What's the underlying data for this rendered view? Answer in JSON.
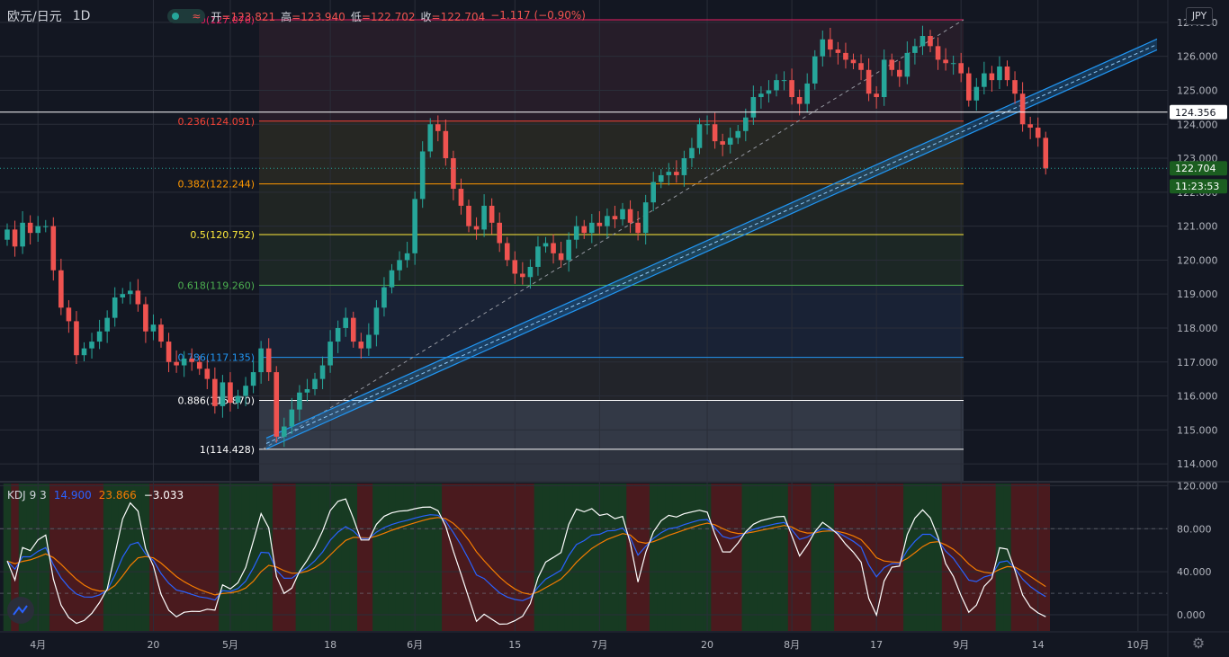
{
  "header": {
    "symbol": "欧元/日元",
    "timeframe": "1D",
    "open_label": "开",
    "open": "=123.821",
    "high_label": "高",
    "high": "=123.940",
    "low_label": "低",
    "low": "=122.702",
    "close_label": "收",
    "close": "=122.704",
    "change": "−1.117 (−0.90%)"
  },
  "currency_button": "JPY",
  "colors": {
    "up": "#26a69a",
    "down": "#ef5350",
    "k_line": "#2962ff",
    "d_line": "#f57c00",
    "j_line": "#ffffff",
    "channel": "#2196f3"
  },
  "chart_data": [
    {
      "type": "candlestick",
      "title": "",
      "y_axis": {
        "min": 113.5,
        "max": 127.5,
        "ticks": [
          "114.000",
          "115.000",
          "116.000",
          "117.000",
          "118.000",
          "119.000",
          "120.000",
          "121.000",
          "122.000",
          "123.000",
          "124.000",
          "125.000",
          "126.000",
          "127.000"
        ]
      },
      "x_axis": {
        "ticks": [
          "4月",
          "20",
          "5月",
          "18",
          "6月",
          "15",
          "7月",
          "20",
          "8月",
          "17",
          "9月",
          "14",
          "10月"
        ]
      },
      "price_labels": {
        "crosshair": "124.356",
        "last": "122.704",
        "countdown": "11:23:53"
      },
      "fibonacci": [
        {
          "level": "0",
          "price": 127.076,
          "label": "0(127.076)",
          "color": "#e91e63"
        },
        {
          "level": "0.236",
          "price": 124.091,
          "label": "0.236(124.091)",
          "color": "#f44336"
        },
        {
          "level": "0.382",
          "price": 122.244,
          "label": "0.382(122.244)",
          "color": "#ff9800"
        },
        {
          "level": "0.5",
          "price": 120.752,
          "label": "0.5(120.752)",
          "color": "#ffeb3b"
        },
        {
          "level": "0.618",
          "price": 119.26,
          "label": "0.618(119.260)",
          "color": "#4caf50"
        },
        {
          "level": "0.786",
          "price": 117.135,
          "label": "0.786(117.135)",
          "color": "#2196f3"
        },
        {
          "level": "0.886",
          "price": 115.87,
          "label": "0.886(115.870)",
          "color": "#ffffff"
        },
        {
          "level": "1",
          "price": 114.428,
          "label": "1(114.428)",
          "color": "#ffffff"
        }
      ],
      "candles_close": [
        120.9,
        120.4,
        121.1,
        120.8,
        121.0,
        121.0,
        119.7,
        118.6,
        118.2,
        117.2,
        117.4,
        117.6,
        117.9,
        118.3,
        118.9,
        119.0,
        119.1,
        118.7,
        117.9,
        118.1,
        117.6,
        117.0,
        116.9,
        117.1,
        117.0,
        116.8,
        116.5,
        115.7,
        116.4,
        115.8,
        116.0,
        116.3,
        116.7,
        117.4,
        116.7,
        114.8,
        115.1,
        115.6,
        116.1,
        116.2,
        116.5,
        116.9,
        117.6,
        118.0,
        118.3,
        117.6,
        117.4,
        117.8,
        118.6,
        119.2,
        119.7,
        120.0,
        120.2,
        121.8,
        123.2,
        124.0,
        123.8,
        123.0,
        122.1,
        121.6,
        121.0,
        120.9,
        121.6,
        121.1,
        120.5,
        120.0,
        119.6,
        119.5,
        119.8,
        120.4,
        120.5,
        120.2,
        120.0,
        120.6,
        121.0,
        120.8,
        121.1,
        121.0,
        121.3,
        121.2,
        121.5,
        121.1,
        120.8,
        121.7,
        122.3,
        122.5,
        122.6,
        122.5,
        123.0,
        123.3,
        124.0,
        124.0,
        123.5,
        123.4,
        123.6,
        123.8,
        124.2,
        124.8,
        124.9,
        125.0,
        125.3,
        125.3,
        124.8,
        124.6,
        125.2,
        126.0,
        126.5,
        126.2,
        126.1,
        125.9,
        125.8,
        125.6,
        124.9,
        124.8,
        125.9,
        125.6,
        125.4,
        126.1,
        126.3,
        126.6,
        126.3,
        125.9,
        125.8,
        125.8,
        125.5,
        124.7,
        125.1,
        125.5,
        125.3,
        125.7,
        125.3,
        124.9,
        124.0,
        123.9,
        123.6,
        122.7
      ]
    },
    {
      "type": "line",
      "title": "KDJ",
      "indicator_label": "KDJ",
      "indicator_params": "9 3",
      "values": {
        "k": "14.900",
        "d": "23.866",
        "j": "−3.033"
      },
      "y_axis": {
        "min": -15,
        "max": 122,
        "ticks": [
          "0.000",
          "40.000",
          "80.000",
          "120.000"
        ]
      },
      "series": [
        {
          "name": "K",
          "color": "#2962ff"
        },
        {
          "name": "D",
          "color": "#f57c00"
        },
        {
          "name": "J",
          "color": "#ffffff"
        }
      ]
    }
  ]
}
